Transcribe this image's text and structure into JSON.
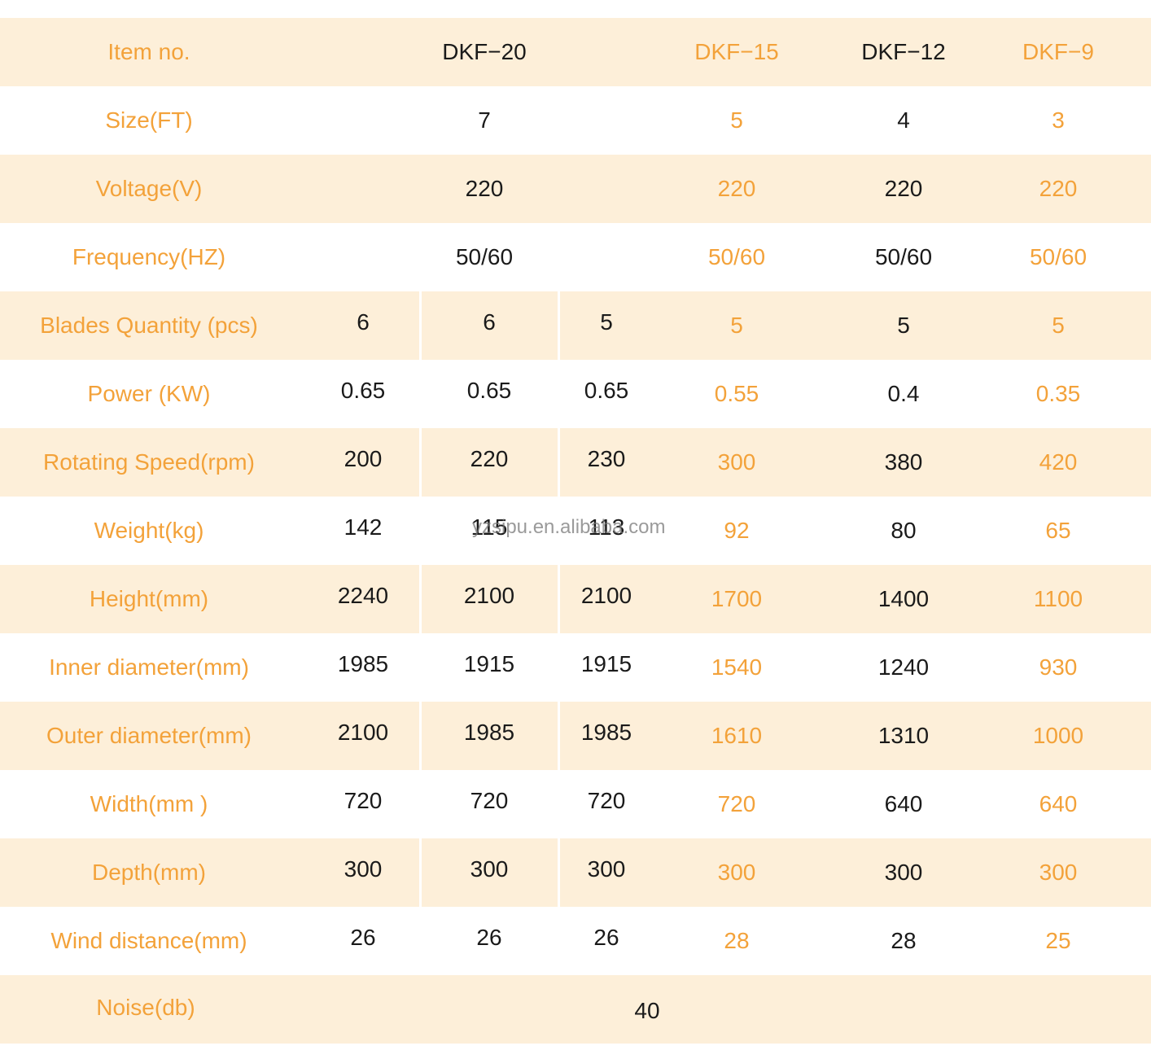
{
  "table": {
    "header": {
      "label": "Item no.",
      "models": [
        "DKF−20",
        "DKF−15",
        "DKF−12",
        "DKF−9"
      ]
    },
    "rows": [
      {
        "label": "Size(FT)",
        "cells": [
          "7",
          "5",
          "4",
          "3"
        ]
      },
      {
        "label": "Voltage(V)",
        "cells": [
          "220",
          "220",
          "220",
          "220"
        ]
      },
      {
        "label": "Frequency(HZ)",
        "cells": [
          "50/60",
          "50/60",
          "50/60",
          "50/60"
        ]
      },
      {
        "label": "Blades Quantity (pcs)",
        "cells": [
          [
            "6",
            "6",
            "5"
          ],
          "5",
          "5",
          "5"
        ]
      },
      {
        "label": "Power (KW)",
        "cells": [
          [
            "0.65",
            "0.65",
            "0.65"
          ],
          "0.55",
          "0.4",
          "0.35"
        ]
      },
      {
        "label": "Rotating Speed(rpm)",
        "cells": [
          [
            "200",
            "220",
            "230"
          ],
          "300",
          "380",
          "420"
        ]
      },
      {
        "label": "Weight(kg)",
        "cells": [
          [
            "142",
            "115",
            "113"
          ],
          "92",
          "80",
          "65"
        ]
      },
      {
        "label": "Height(mm)",
        "cells": [
          [
            "2240",
            "2100",
            "2100"
          ],
          "1700",
          "1400",
          "1100"
        ]
      },
      {
        "label": "Inner diameter(mm)",
        "cells": [
          [
            "1985",
            "1915",
            "1915"
          ],
          "1540",
          "1240",
          "930"
        ]
      },
      {
        "label": "Outer diameter(mm)",
        "cells": [
          [
            "2100",
            "1985",
            "1985"
          ],
          "1610",
          "1310",
          "1000"
        ]
      },
      {
        "label": "Width(mm )",
        "cells": [
          [
            "720",
            "720",
            "720"
          ],
          "720",
          "640",
          "640"
        ]
      },
      {
        "label": "Depth(mm)",
        "cells": [
          [
            "300",
            "300",
            "300"
          ],
          "300",
          "300",
          "300"
        ]
      },
      {
        "label": "Wind distance(mm)",
        "cells": [
          [
            "26",
            "26",
            "26"
          ],
          "28",
          "28",
          "25"
        ]
      }
    ],
    "footer": {
      "label": "Noise(db)",
      "value": "40"
    }
  },
  "watermark": "yzsipu.en.alibaba.com"
}
